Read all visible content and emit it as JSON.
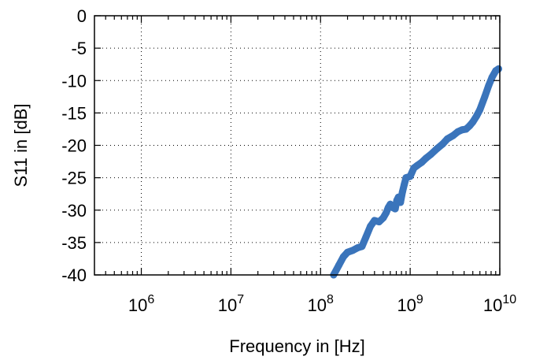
{
  "chart_data": {
    "type": "line",
    "xscale": "log",
    "xlim": [
      300000,
      10000000000
    ],
    "ylim": [
      -40,
      0
    ],
    "grid": true,
    "xlabel": "Frequency in [Hz]",
    "ylabel": "S11 in [dB]",
    "xticks": [
      {
        "base": "10",
        "exp": "6",
        "value": 1000000
      },
      {
        "base": "10",
        "exp": "7",
        "value": 10000000
      },
      {
        "base": "10",
        "exp": "8",
        "value": 100000000
      },
      {
        "base": "10",
        "exp": "9",
        "value": 1000000000
      },
      {
        "base": "10",
        "exp": "10",
        "value": 10000000000
      }
    ],
    "yticks": [
      {
        "label": "0",
        "value": 0
      },
      {
        "label": "-5",
        "value": -5
      },
      {
        "label": "-10",
        "value": -10
      },
      {
        "label": "-15",
        "value": -15
      },
      {
        "label": "-20",
        "value": -20
      },
      {
        "label": "-25",
        "value": -25
      },
      {
        "label": "-30",
        "value": -30
      },
      {
        "label": "-35",
        "value": -35
      },
      {
        "label": "-40",
        "value": -40
      }
    ],
    "series": [
      {
        "color": "#3a74bb",
        "x": [
          140000000,
          160000000,
          180000000,
          200000000,
          230000000,
          260000000,
          290000000,
          320000000,
          360000000,
          400000000,
          450000000,
          500000000,
          540000000,
          570000000,
          600000000,
          640000000,
          680000000,
          710000000,
          740000000,
          780000000,
          820000000,
          860000000,
          900000000,
          1000000000,
          1100000000,
          1200000000,
          1350000000,
          1500000000,
          1700000000,
          2000000000,
          2300000000,
          2600000000,
          3000000000,
          3400000000,
          3800000000,
          4200000000,
          4600000000,
          5000000000,
          5500000000,
          6000000000,
          6800000000,
          7500000000,
          8200000000,
          9000000000,
          9700000000
        ],
        "y": [
          -40,
          -38.5,
          -37.2,
          -36.5,
          -36.2,
          -35.8,
          -35.6,
          -34.2,
          -32.5,
          -31.6,
          -31.8,
          -31.2,
          -30.4,
          -29.6,
          -29.1,
          -29.6,
          -29.8,
          -28.5,
          -28.0,
          -28.8,
          -27.2,
          -26.0,
          -25.0,
          -24.8,
          -23.5,
          -23.1,
          -22.6,
          -22.0,
          -21.4,
          -20.5,
          -19.8,
          -19.0,
          -18.5,
          -17.9,
          -17.6,
          -17.5,
          -17.0,
          -16.4,
          -15.5,
          -14.5,
          -12.5,
          -10.8,
          -9.5,
          -8.5,
          -8.2
        ]
      }
    ]
  }
}
